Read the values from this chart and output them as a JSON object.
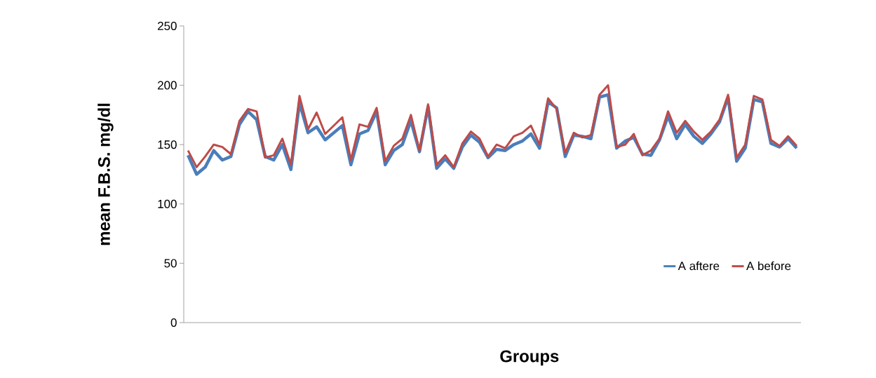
{
  "chart_data": {
    "type": "line",
    "xlabel": "Groups",
    "ylabel": "mean F.B.S.  mg/dl",
    "categories": [
      null,
      null,
      null,
      null,
      null,
      null,
      null,
      null,
      null,
      null,
      null,
      null,
      null,
      null,
      null,
      null,
      null,
      null,
      null,
      null,
      null,
      null,
      null,
      null,
      null,
      null,
      null,
      null,
      null,
      null,
      null,
      null,
      null,
      null,
      null,
      null,
      null,
      null,
      null,
      null,
      null,
      null,
      null,
      null,
      null,
      null,
      null,
      null,
      null,
      null,
      null,
      null,
      null,
      null,
      null,
      null,
      null,
      null,
      null,
      null,
      null,
      null,
      null,
      null,
      null,
      null,
      null,
      null,
      null,
      null,
      null,
      null
    ],
    "series": [
      {
        "name": "A aftere",
        "color": "#4a7ebb",
        "values": [
          141,
          125,
          131,
          145,
          137,
          140,
          167,
          178,
          171,
          140,
          137,
          150,
          129,
          185,
          160,
          165,
          154,
          160,
          166,
          133,
          159,
          162,
          178,
          133,
          145,
          150,
          170,
          144,
          182,
          130,
          138,
          130,
          148,
          158,
          152,
          139,
          146,
          145,
          150,
          153,
          159,
          147,
          186,
          181,
          140,
          158,
          157,
          155,
          190,
          192,
          147,
          153,
          156,
          142,
          141,
          154,
          174,
          155,
          167,
          157,
          151,
          159,
          169,
          190,
          136,
          147,
          188,
          186,
          151,
          148,
          155,
          147
        ]
      },
      {
        "name": "A before",
        "color": "#be4b48",
        "values": [
          145,
          131,
          140,
          150,
          148,
          142,
          170,
          180,
          178,
          139,
          141,
          155,
          133,
          191,
          163,
          177,
          159,
          166,
          173,
          137,
          167,
          165,
          181,
          136,
          149,
          155,
          175,
          145,
          184,
          133,
          141,
          131,
          151,
          161,
          155,
          140,
          150,
          147,
          157,
          160,
          166,
          150,
          189,
          180,
          143,
          160,
          156,
          158,
          192,
          200,
          148,
          150,
          159,
          141,
          145,
          155,
          178,
          160,
          170,
          161,
          154,
          161,
          171,
          192,
          139,
          150,
          191,
          188,
          154,
          149,
          157,
          149
        ]
      }
    ],
    "ylim": [
      0,
      250
    ],
    "yticks": [
      0,
      50,
      100,
      150,
      200,
      250
    ],
    "legend": "bottom right",
    "tick_labels": "y"
  }
}
